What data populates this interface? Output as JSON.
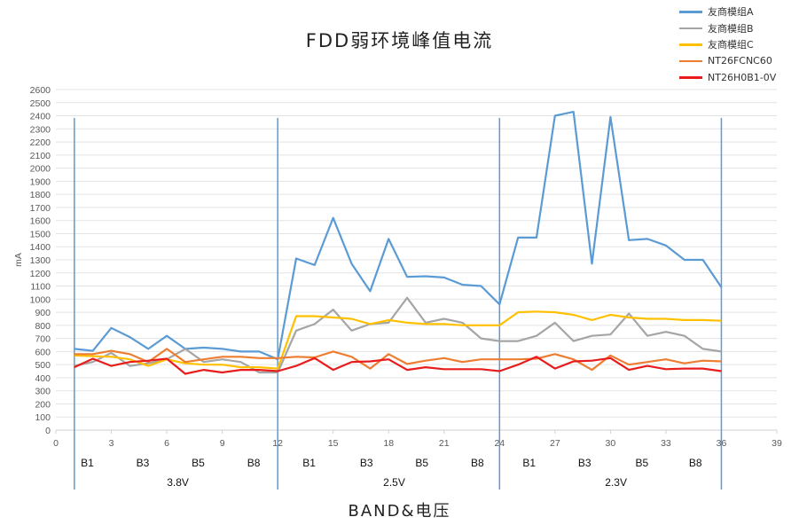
{
  "chart_data": {
    "type": "line",
    "title": "FDD弱环境峰值电流",
    "xlabel": "BAND&电压",
    "ylabel": "mA",
    "ylim": [
      0,
      2600
    ],
    "yticks": [
      0,
      100,
      200,
      300,
      400,
      500,
      600,
      700,
      800,
      900,
      1000,
      1100,
      1200,
      1300,
      1400,
      1500,
      1600,
      1700,
      1800,
      1900,
      2000,
      2100,
      2200,
      2300,
      2400,
      2500,
      2600
    ],
    "xlim": [
      0,
      39
    ],
    "xticks": [
      0,
      3,
      6,
      9,
      12,
      15,
      18,
      21,
      24,
      27,
      30,
      33,
      36,
      39
    ],
    "grid": "horizontal",
    "legend_position": "top-right",
    "x": [
      1,
      2,
      3,
      4,
      5,
      6,
      7,
      8,
      9,
      10,
      11,
      12,
      13,
      14,
      15,
      16,
      17,
      18,
      19,
      20,
      21,
      22,
      23,
      24,
      25,
      26,
      27,
      28,
      29,
      30,
      31,
      32,
      33,
      34,
      35,
      36
    ],
    "series": [
      {
        "name": "友商模组A",
        "color": "#5B9BD5",
        "values": [
          620,
          605,
          780,
          710,
          620,
          720,
          620,
          630,
          620,
          600,
          600,
          540,
          1310,
          1260,
          1620,
          1270,
          1060,
          1460,
          1170,
          1175,
          1165,
          1110,
          1100,
          960,
          1470,
          1470,
          2400,
          2430,
          1270,
          2390,
          1450,
          1460,
          1410,
          1300,
          1300,
          1090
        ]
      },
      {
        "name": "友商模组B",
        "color": "#A5A5A5",
        "values": [
          490,
          520,
          590,
          490,
          510,
          540,
          620,
          520,
          540,
          520,
          440,
          440,
          760,
          810,
          920,
          760,
          810,
          820,
          1010,
          820,
          850,
          820,
          700,
          680,
          680,
          720,
          820,
          680,
          720,
          730,
          890,
          720,
          750,
          720,
          620,
          600
        ]
      },
      {
        "name": "友商模组C",
        "color": "#FFC000",
        "values": [
          570,
          565,
          560,
          540,
          490,
          540,
          510,
          500,
          500,
          480,
          480,
          470,
          870,
          870,
          860,
          850,
          810,
          840,
          820,
          810,
          810,
          800,
          800,
          800,
          900,
          905,
          900,
          880,
          840,
          880,
          860,
          850,
          850,
          840,
          840,
          835
        ]
      },
      {
        "name": "NT26FCNC60",
        "color": "#ED7D31",
        "values": [
          580,
          580,
          605,
          580,
          520,
          620,
          520,
          540,
          560,
          560,
          550,
          550,
          560,
          555,
          600,
          560,
          470,
          580,
          505,
          530,
          550,
          520,
          540,
          540,
          540,
          545,
          580,
          540,
          460,
          570,
          500,
          520,
          540,
          510,
          530,
          525
        ]
      },
      {
        "name": "NT26H0B1-0V",
        "color": "#E81C1C",
        "values": [
          480,
          545,
          490,
          520,
          530,
          545,
          430,
          460,
          440,
          460,
          460,
          450,
          490,
          550,
          460,
          520,
          525,
          540,
          460,
          480,
          465,
          465,
          465,
          450,
          500,
          560,
          470,
          525,
          530,
          550,
          460,
          490,
          465,
          470,
          470,
          450
        ]
      }
    ],
    "separators_x": [
      1,
      12,
      24,
      36
    ],
    "band_labels": [
      {
        "x": 1.7,
        "label": "B1"
      },
      {
        "x": 4.7,
        "label": "B3"
      },
      {
        "x": 7.7,
        "label": "B5"
      },
      {
        "x": 10.7,
        "label": "B8"
      },
      {
        "x": 13.7,
        "label": "B1"
      },
      {
        "x": 16.8,
        "label": "B3"
      },
      {
        "x": 19.8,
        "label": "B5"
      },
      {
        "x": 22.8,
        "label": "B8"
      },
      {
        "x": 25.6,
        "label": "B1"
      },
      {
        "x": 28.6,
        "label": "B3"
      },
      {
        "x": 31.7,
        "label": "B5"
      },
      {
        "x": 34.6,
        "label": "B8"
      }
    ],
    "voltage_labels": [
      {
        "x": 6.6,
        "label": "3.8V"
      },
      {
        "x": 18.3,
        "label": "2.5V"
      },
      {
        "x": 30.3,
        "label": "2.3V"
      }
    ]
  }
}
